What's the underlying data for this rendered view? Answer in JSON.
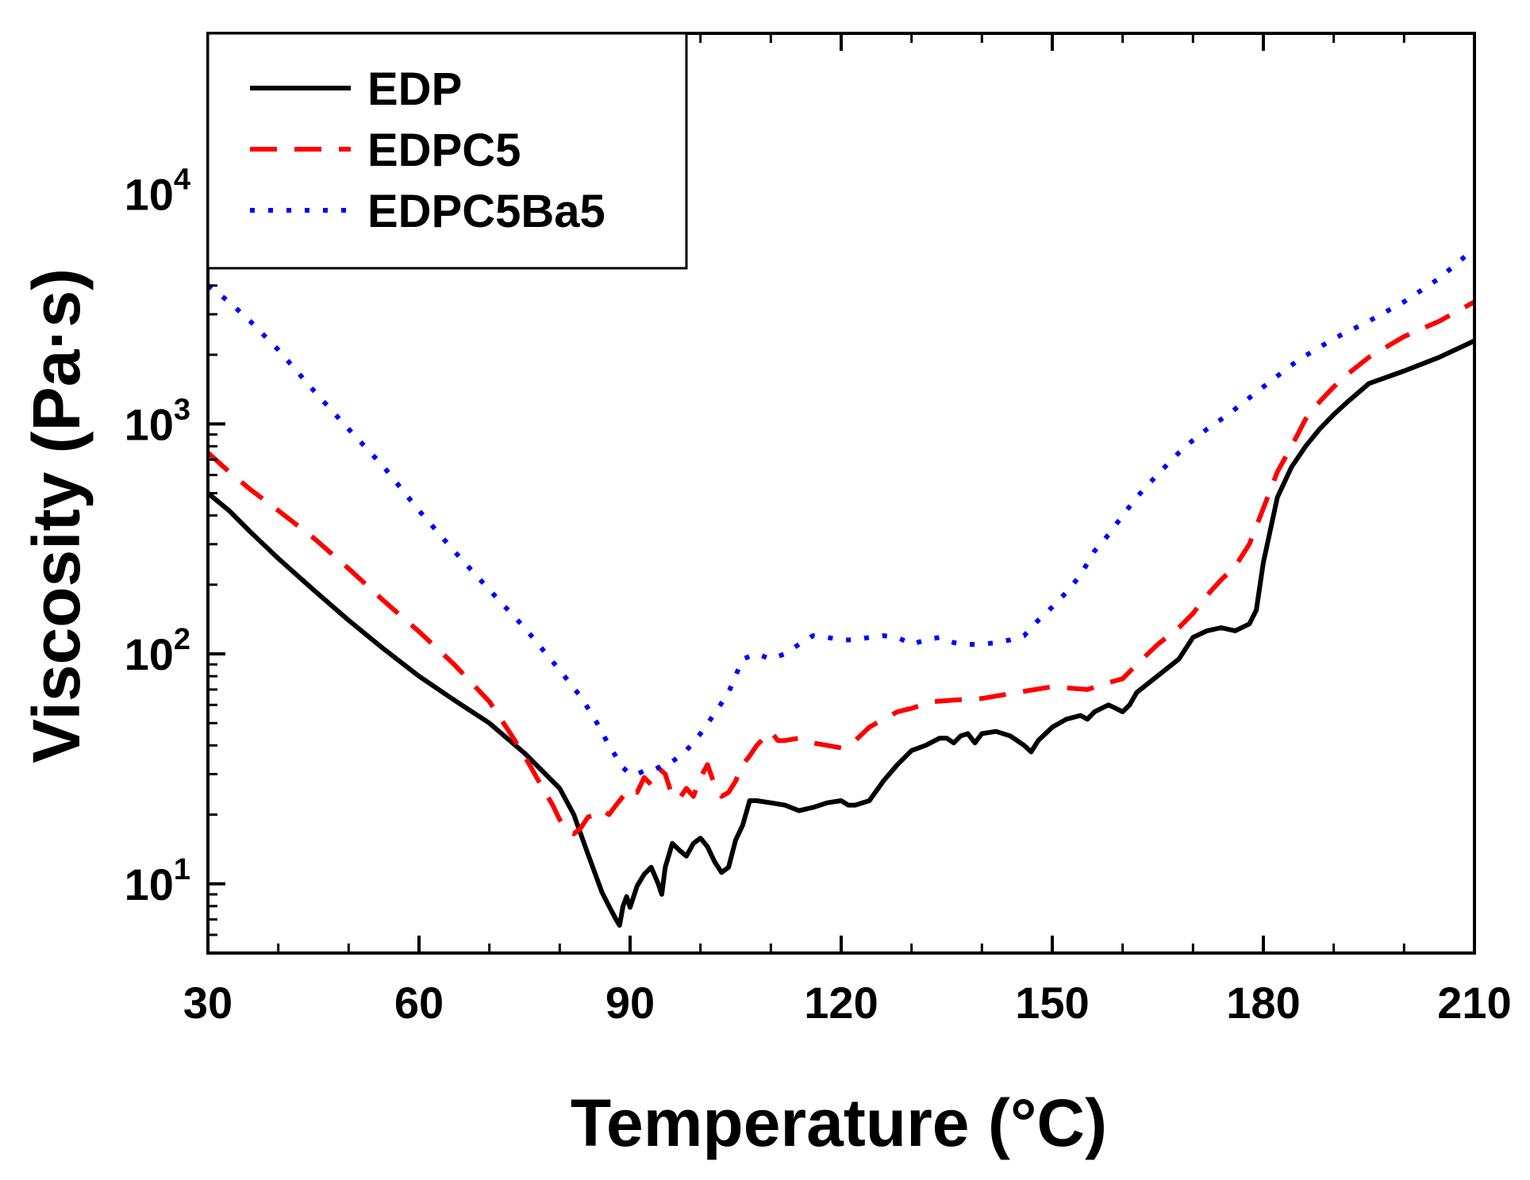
{
  "chart_data": {
    "type": "line",
    "title": "",
    "xlabel": "Temperature (°C)",
    "ylabel": "Viscosity (Pa·s)",
    "xlim": [
      30,
      210
    ],
    "ylim": [
      5,
      50000
    ],
    "yscale": "log",
    "grid": false,
    "legend_position": "top-left",
    "x_ticks": [
      {
        "value": 30,
        "label": "30"
      },
      {
        "value": 60,
        "label": "60"
      },
      {
        "value": 90,
        "label": "90"
      },
      {
        "value": 120,
        "label": "120"
      },
      {
        "value": 150,
        "label": "150"
      },
      {
        "value": 180,
        "label": "180"
      },
      {
        "value": 210,
        "label": "210"
      }
    ],
    "y_ticks": [
      {
        "value": 10,
        "base": "10",
        "exp": "1"
      },
      {
        "value": 100,
        "base": "10",
        "exp": "2"
      },
      {
        "value": 1000,
        "base": "10",
        "exp": "3"
      },
      {
        "value": 10000,
        "base": "10",
        "exp": "4"
      }
    ],
    "series": [
      {
        "name": "EDP",
        "color": "#000000",
        "style": "solid",
        "x": [
          30,
          33,
          36,
          40,
          45,
          50,
          55,
          60,
          65,
          70,
          75,
          80,
          82,
          84,
          86,
          87,
          88,
          88.5,
          89,
          89.5,
          90,
          91,
          92,
          93,
          94,
          94.5,
          95,
          96,
          97,
          98,
          99,
          100,
          101,
          102,
          103,
          104,
          105,
          106,
          107,
          108,
          110,
          112,
          114,
          116,
          118,
          120,
          121,
          122,
          124,
          126,
          128,
          130,
          132,
          134,
          135,
          136,
          137,
          138,
          139,
          140,
          142,
          144,
          145,
          146,
          147,
          148,
          150,
          152,
          154,
          155,
          156,
          157,
          158,
          159,
          160,
          161,
          162,
          164,
          166,
          168,
          170,
          172,
          174,
          176,
          178,
          179,
          180,
          182,
          184,
          186,
          188,
          190,
          192,
          195,
          200,
          205,
          210
        ],
        "y": [
          500,
          420,
          340,
          260,
          190,
          140,
          105,
          80,
          63,
          50,
          37,
          26,
          20,
          13.5,
          9.2,
          8.0,
          7.0,
          6.6,
          8.0,
          8.8,
          7.9,
          9.8,
          11.0,
          11.8,
          10.0,
          9.0,
          11.8,
          15.0,
          14.0,
          13.2,
          15.0,
          15.8,
          14.5,
          12.5,
          11.2,
          11.8,
          15.5,
          18.0,
          23.0,
          23.0,
          22.5,
          22.0,
          20.8,
          21.5,
          22.5,
          23.0,
          22.0,
          22.0,
          23.0,
          28.0,
          33.0,
          38.0,
          40.0,
          43.0,
          43.0,
          41.0,
          44.0,
          45.0,
          41.0,
          45.0,
          46.0,
          44.0,
          42.0,
          40.0,
          37.5,
          42.0,
          48.0,
          52.0,
          54.0,
          52.0,
          56.0,
          58.0,
          60.0,
          58.0,
          56.0,
          60.0,
          68.0,
          76.0,
          85.0,
          95.0,
          118.0,
          126.0,
          130.0,
          126.0,
          135.0,
          155.0,
          250.0,
          480.0,
          650.0,
          800.0,
          950.0,
          1100.0,
          1250.0,
          1500.0,
          1700.0,
          1950.0,
          2300.0
        ]
      },
      {
        "name": "EDPC5",
        "color": "#ff0000",
        "style": "dashed",
        "x": [
          30,
          33,
          36,
          40,
          45,
          50,
          55,
          60,
          65,
          70,
          73,
          75,
          77,
          79,
          80,
          81,
          82,
          83,
          84,
          85,
          86,
          87,
          88,
          89,
          90,
          91,
          92,
          93,
          94,
          95,
          96,
          97,
          98,
          99,
          100,
          101,
          102,
          103,
          104,
          105,
          106,
          107,
          108,
          109,
          110,
          111,
          112,
          114,
          116,
          118,
          120,
          122,
          124,
          126,
          128,
          130,
          133,
          136,
          140,
          145,
          150,
          155,
          158,
          160,
          162,
          165,
          168,
          170,
          172,
          174,
          176,
          178,
          180,
          182,
          184,
          186,
          188,
          190,
          192,
          195,
          200,
          205,
          210
        ],
        "y": [
          750,
          620,
          520,
          420,
          320,
          235,
          170,
          125,
          90,
          62,
          45,
          36,
          28,
          22,
          19,
          17,
          16.5,
          17.5,
          19.5,
          20,
          21,
          20,
          22,
          24,
          26,
          25,
          29,
          27,
          32,
          30,
          24,
          23.5,
          26,
          24,
          29,
          33,
          27,
          24,
          25,
          28,
          33,
          36,
          40,
          43,
          46,
          42,
          42,
          43,
          41,
          40,
          39,
          42,
          48,
          52,
          56,
          58,
          62,
          63,
          64,
          68,
          72,
          70,
          75,
          78,
          90,
          110,
          130,
          150,
          180,
          210,
          240,
          300,
          430,
          620,
          800,
          1050,
          1250,
          1450,
          1650,
          1950,
          2400,
          2800,
          3400
        ]
      },
      {
        "name": "EDPC5Ba5",
        "color": "#0000ff",
        "style": "dotted",
        "x": [
          30,
          33,
          36,
          40,
          45,
          50,
          55,
          60,
          65,
          70,
          75,
          80,
          83,
          85,
          87,
          89,
          90,
          91,
          92,
          93,
          94,
          95,
          96,
          98,
          100,
          102,
          104,
          106,
          108,
          110,
          112,
          114,
          116,
          118,
          120,
          122,
          124,
          126,
          128,
          130,
          132,
          134,
          136,
          138,
          140,
          142,
          144,
          146,
          148,
          150,
          152,
          154,
          156,
          158,
          160,
          162,
          164,
          166,
          168,
          170,
          172,
          175,
          180,
          185,
          190,
          195,
          200,
          205,
          210
        ],
        "y": [
          4000,
          3400,
          2800,
          2100,
          1400,
          950,
          650,
          420,
          280,
          190,
          130,
          85,
          65,
          52,
          40,
          32,
          30,
          30,
          31,
          31,
          32,
          33,
          34,
          38,
          45,
          55,
          68,
          95,
          100,
          95,
          100,
          110,
          120,
          118,
          115,
          115,
          118,
          120,
          118,
          110,
          115,
          118,
          112,
          110,
          110,
          112,
          115,
          120,
          140,
          160,
          185,
          220,
          280,
          330,
          400,
          480,
          560,
          650,
          750,
          850,
          950,
          1100,
          1450,
          1900,
          2350,
          2800,
          3400,
          4300,
          5800
        ]
      }
    ]
  }
}
